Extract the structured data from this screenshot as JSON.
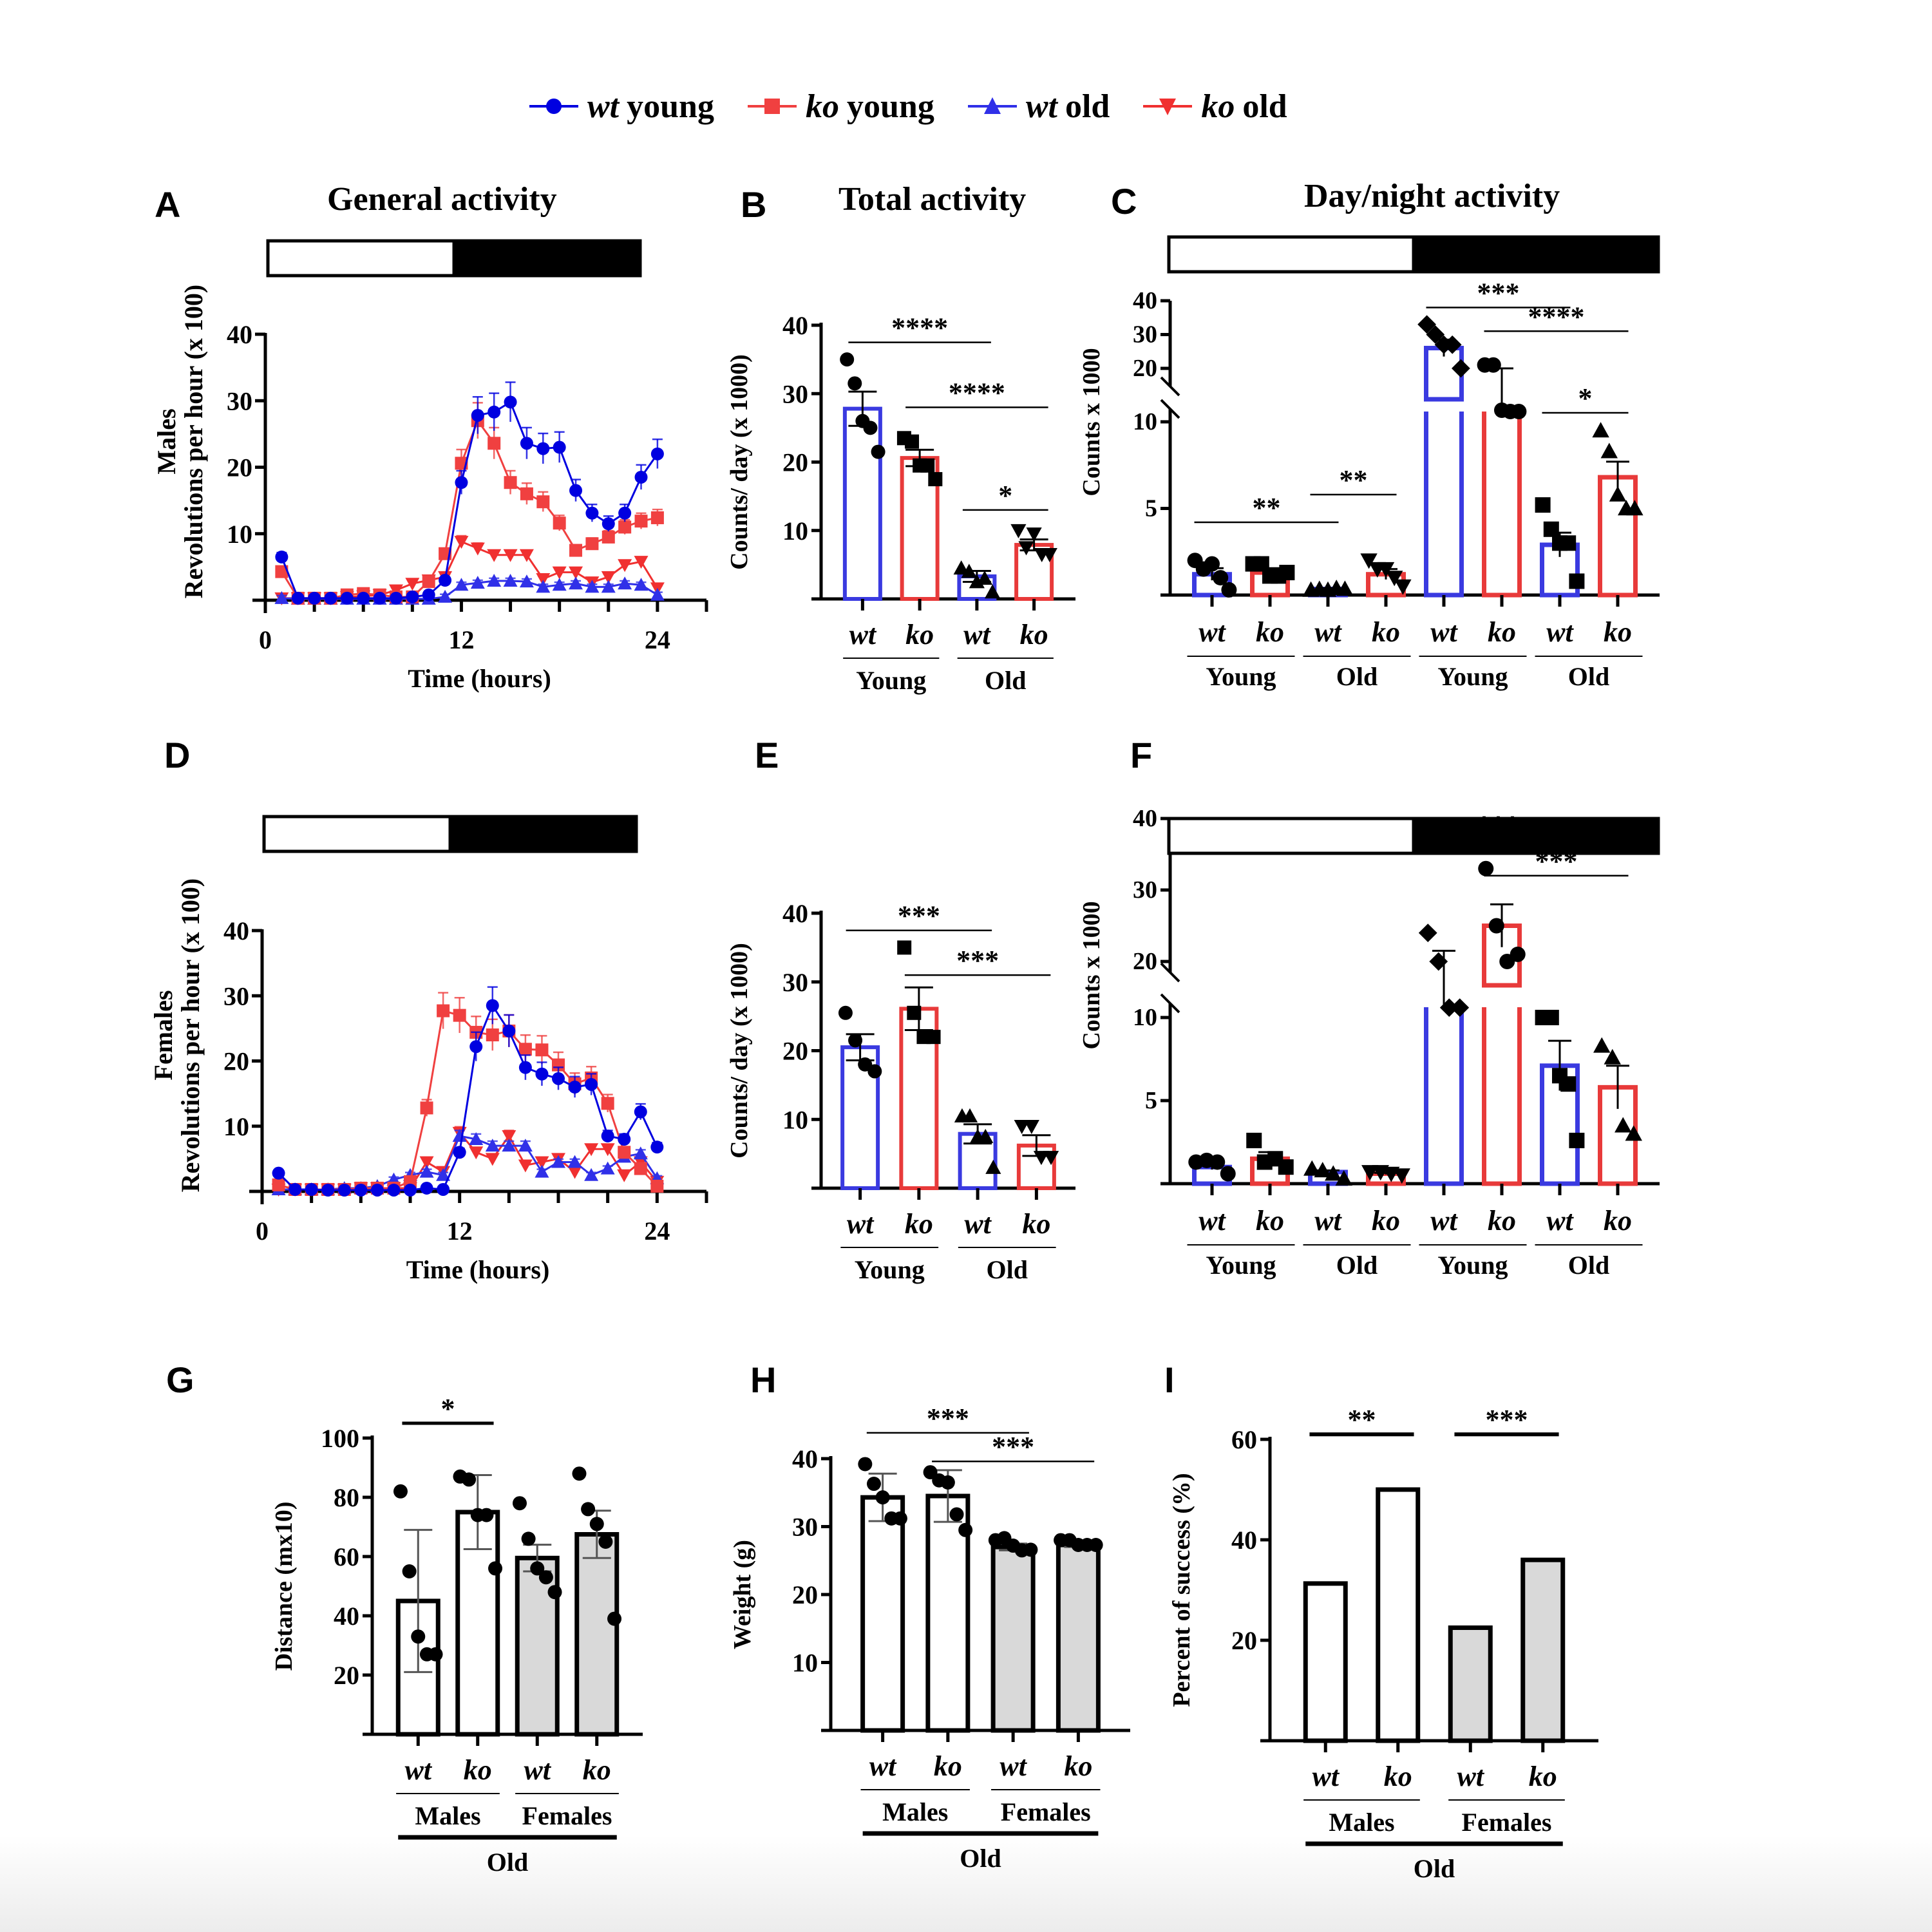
{
  "legend": [
    {
      "genotype": "wt",
      "label": "young",
      "color": "#0000e0",
      "marker": "circle"
    },
    {
      "genotype": "ko",
      "label": "young",
      "color": "#f04040",
      "marker": "square"
    },
    {
      "genotype": "wt",
      "label": "old",
      "color": "#3030e8",
      "marker": "triangle-up"
    },
    {
      "genotype": "ko",
      "label": "old",
      "color": "#f03030",
      "marker": "triangle-down"
    }
  ],
  "colors": {
    "wt": "#3a3ae0",
    "ko": "#e83a3a",
    "grey_fill": "#d9d9d9"
  },
  "chart_data": [
    {
      "id": "A",
      "type": "line",
      "title": "General activity",
      "ylabel": "Males\nRevolutions per hour (x 100)",
      "xlabel": "Time (hours)",
      "ylim": [
        0,
        40
      ],
      "yticks": [
        10,
        20,
        30,
        40
      ],
      "xlim": [
        0,
        27
      ],
      "xticks": [
        0,
        12,
        24
      ],
      "light_dark_bar": {
        "light": [
          0,
          12
        ],
        "dark": [
          12,
          24
        ]
      },
      "x": [
        1,
        2,
        3,
        4,
        5,
        6,
        7,
        8,
        9,
        10,
        11,
        12,
        13,
        14,
        15,
        16,
        17,
        18,
        19,
        20,
        21,
        22,
        23,
        24
      ],
      "series": [
        {
          "name": "wt young",
          "color": "#0000e0",
          "marker": "circle",
          "values": [
            6.5,
            0.3,
            0.3,
            0.3,
            0.3,
            0.3,
            0.3,
            0.3,
            0.5,
            0.8,
            3,
            17.7,
            27.8,
            28.3,
            29.8,
            23.6,
            22.8,
            23,
            16.5,
            13.1,
            11.5,
            13.1,
            18.5,
            22
          ]
        },
        {
          "name": "ko young",
          "color": "#f04040",
          "marker": "square",
          "values": [
            4.3,
            0.3,
            0.3,
            0.3,
            0.8,
            1,
            0.8,
            0.5,
            0.5,
            2.8,
            7,
            20.6,
            27,
            23.6,
            17.7,
            16,
            14.8,
            11.6,
            7.5,
            8.5,
            9.5,
            11,
            11.9,
            12.4
          ]
        },
        {
          "name": "wt old",
          "color": "#3030e8",
          "marker": "triangle-up",
          "values": [
            0.3,
            0.2,
            0.2,
            0.2,
            0.2,
            0.2,
            0.2,
            0.2,
            0.2,
            0.2,
            0.5,
            2.3,
            2.6,
            2.9,
            2.9,
            2.8,
            2,
            2.3,
            2.5,
            2,
            2,
            2.5,
            2.3,
            0.8
          ]
        },
        {
          "name": "ko old",
          "color": "#f03030",
          "marker": "triangle-down",
          "values": [
            0.3,
            0.3,
            0.3,
            0.3,
            0.5,
            0.6,
            0.8,
            1.5,
            2.5,
            3,
            3.5,
            8.8,
            7.8,
            6.8,
            6.8,
            6.8,
            3.2,
            4.2,
            4.2,
            2.7,
            3.5,
            5.3,
            5.8,
            1.8
          ]
        }
      ]
    },
    {
      "id": "B",
      "type": "bar",
      "title": "Total activity",
      "ylabel": "Counts/ day (x 1000)",
      "ylim": [
        0,
        40
      ],
      "yticks": [
        10,
        20,
        30,
        40
      ],
      "categories": [
        "wt",
        "ko",
        "wt",
        "ko"
      ],
      "groups": [
        {
          "label": "Young",
          "span": [
            0,
            1
          ]
        },
        {
          "label": "Old",
          "span": [
            2,
            3
          ]
        }
      ],
      "bar_colors": [
        "wt",
        "ko",
        "wt",
        "ko"
      ],
      "values": [
        27.8,
        20.6,
        3.3,
        7.9
      ],
      "sem": [
        2.5,
        1.2,
        0.8,
        0.8
      ],
      "points": [
        [
          35,
          31.5,
          26,
          25,
          21.5
        ],
        [
          23.5,
          23,
          19.5,
          19.5,
          17.5
        ],
        [
          4.5,
          4,
          2.5,
          3,
          1
        ],
        [
          10,
          7.5,
          9.5,
          6.5,
          6.5
        ]
      ],
      "point_markers": [
        "circle",
        "square",
        "triangle-up",
        "triangle-down"
      ],
      "significance": [
        {
          "from": 0,
          "to": 2,
          "label": "****",
          "y": 37.5
        },
        {
          "from": 1,
          "to": 3,
          "label": "****",
          "y": 28
        },
        {
          "from": 2,
          "to": 3,
          "label": "*",
          "y": 13
        }
      ]
    },
    {
      "id": "C",
      "type": "bar",
      "title": "Day/night activity",
      "ylabel": "Counts x 1000",
      "axis_break": true,
      "yticks": [
        5,
        10,
        20,
        30,
        40
      ],
      "light_dark_bar": {
        "light_bars": [
          0,
          1,
          2,
          3
        ],
        "dark_bars": [
          4,
          5,
          6,
          7
        ]
      },
      "categories": [
        "wt",
        "ko",
        "wt",
        "ko",
        "wt",
        "ko",
        "wt",
        "ko"
      ],
      "groups": [
        {
          "label": "Young",
          "span": [
            0,
            1
          ]
        },
        {
          "label": "Old",
          "span": [
            2,
            3
          ]
        },
        {
          "label": "Young",
          "span": [
            4,
            5
          ]
        },
        {
          "label": "Old",
          "span": [
            6,
            7
          ]
        }
      ],
      "bar_colors": [
        "wt",
        "ko",
        "wt",
        "ko",
        "wt",
        "ko",
        "wt",
        "ko"
      ],
      "values": [
        1.2,
        1.3,
        0.35,
        1.2,
        26,
        19,
        2.9,
        6.8
      ],
      "sem": [
        0.35,
        0.25,
        0.05,
        0.3,
        2.5,
        1,
        0.7,
        0.9
      ],
      "points": [
        [
          2,
          1.5,
          1.8,
          1,
          0.3
        ],
        [
          1.8,
          1.8,
          1.1,
          1.1,
          1.3
        ],
        [
          0.3,
          0.35,
          0.3,
          0.4,
          0.35
        ],
        [
          2,
          1.5,
          1.5,
          1,
          0.5
        ],
        [
          33,
          30,
          27,
          27,
          20
        ],
        [
          21,
          21,
          19,
          18,
          18
        ],
        [
          5.2,
          3.8,
          3,
          3,
          0.8
        ],
        [
          9.5,
          8.3,
          5.8,
          5,
          5
        ]
      ],
      "point_markers": [
        "circle",
        "square",
        "triangle-up",
        "triangle-down",
        "diamond",
        "circle",
        "square",
        "triangle-up"
      ],
      "significance": [
        {
          "from": 0,
          "to": 2,
          "label": "**",
          "y": 4.2
        },
        {
          "from": 2,
          "to": 3,
          "label": "**",
          "y": 5.8
        },
        {
          "from": 4,
          "to": 6,
          "label": "***",
          "y": 38
        },
        {
          "from": 5,
          "to": 7,
          "label": "****",
          "y": 31
        },
        {
          "from": 6,
          "to": 7,
          "label": "*",
          "y": 17
        }
      ]
    },
    {
      "id": "D",
      "type": "line",
      "title": "",
      "ylabel": "Females\nRevolutions per hour (x 100)",
      "xlabel": "Time (hours)",
      "ylim": [
        0,
        40
      ],
      "yticks": [
        10,
        20,
        30,
        40
      ],
      "xlim": [
        0,
        27
      ],
      "xticks": [
        0,
        12,
        24
      ],
      "light_dark_bar": {
        "light": [
          0,
          12
        ],
        "dark": [
          12,
          24
        ]
      },
      "x": [
        1,
        2,
        3,
        4,
        5,
        6,
        7,
        8,
        9,
        10,
        11,
        12,
        13,
        14,
        15,
        16,
        17,
        18,
        19,
        20,
        21,
        22,
        23,
        24
      ],
      "series": [
        {
          "name": "wt young",
          "color": "#0000e0",
          "marker": "circle",
          "values": [
            2.8,
            0.3,
            0.3,
            0.2,
            0.2,
            0.2,
            0.2,
            0.2,
            0.2,
            0.5,
            0.3,
            6,
            22.2,
            28.5,
            24.6,
            19,
            18,
            17.3,
            16,
            16.4,
            8.5,
            8,
            12.2,
            6.8
          ]
        },
        {
          "name": "ko young",
          "color": "#f04040",
          "marker": "square",
          "values": [
            1,
            0.3,
            0.3,
            0.3,
            0.3,
            0.5,
            0.5,
            0.5,
            1.5,
            12.8,
            27.7,
            27,
            24.4,
            24,
            24.6,
            21.8,
            21.7,
            19.4,
            16.5,
            17.4,
            13.5,
            6,
            3.5,
            0.8
          ]
        },
        {
          "name": "wt old",
          "color": "#3030e8",
          "marker": "triangle-up",
          "values": [
            0.3,
            0.3,
            0.3,
            0.3,
            0.5,
            0.5,
            0.8,
            1.8,
            2.5,
            3,
            2.5,
            8.5,
            8,
            7,
            7,
            7,
            3,
            4.5,
            4.5,
            2.5,
            3.5,
            5.3,
            5.8,
            2
          ]
        },
        {
          "name": "ko old",
          "color": "#f03030",
          "marker": "triangle-down",
          "values": [
            0.3,
            0.3,
            0.3,
            0.3,
            0.3,
            0.5,
            0.5,
            0.5,
            0.5,
            4.5,
            3,
            9,
            6,
            5,
            8.5,
            4,
            4.5,
            5,
            3,
            6.5,
            6.5,
            2.5,
            4.5,
            1.5
          ]
        }
      ]
    },
    {
      "id": "E",
      "type": "bar",
      "title": "",
      "ylabel": "Counts/ day (x 1000)",
      "ylim": [
        0,
        40
      ],
      "yticks": [
        10,
        20,
        30,
        40
      ],
      "categories": [
        "wt",
        "ko",
        "wt",
        "ko"
      ],
      "groups": [
        {
          "label": "Young",
          "span": [
            0,
            1
          ]
        },
        {
          "label": "Old",
          "span": [
            2,
            3
          ]
        }
      ],
      "bar_colors": [
        "wt",
        "ko",
        "wt",
        "ko"
      ],
      "values": [
        20.5,
        26.1,
        7.9,
        6.2
      ],
      "sem": [
        1.9,
        3.1,
        1.4,
        1.5
      ],
      "points": [
        [
          25.5,
          21.5,
          18,
          17
        ],
        [
          35,
          25.5,
          22,
          22
        ],
        [
          10.5,
          10.5,
          7.5,
          7.5,
          3
        ],
        [
          9,
          9,
          4.5,
          4.5
        ]
      ],
      "point_markers": [
        "circle",
        "square",
        "triangle-up",
        "triangle-down"
      ],
      "significance": [
        {
          "from": 0,
          "to": 2,
          "label": "***",
          "y": 37.5
        },
        {
          "from": 1,
          "to": 3,
          "label": "***",
          "y": 31
        }
      ]
    },
    {
      "id": "F",
      "type": "bar",
      "title": "",
      "ylabel": "Counts x 1000",
      "axis_break": true,
      "yticks": [
        5,
        10,
        20,
        30,
        40
      ],
      "light_dark_bar": {
        "light_bars": [
          0,
          1,
          2,
          3
        ],
        "dark_bars": [
          4,
          5,
          6,
          7
        ]
      },
      "categories": [
        "wt",
        "ko",
        "wt",
        "ko",
        "wt",
        "ko",
        "wt",
        "ko"
      ],
      "groups": [
        {
          "label": "Young",
          "span": [
            0,
            1
          ]
        },
        {
          "label": "Old",
          "span": [
            2,
            3
          ]
        },
        {
          "label": "Young",
          "span": [
            4,
            5
          ]
        },
        {
          "label": "Old",
          "span": [
            6,
            7
          ]
        }
      ],
      "bar_colors": [
        "wt",
        "ko",
        "wt",
        "ko",
        "wt",
        "ko",
        "wt",
        "ko"
      ],
      "values": [
        1,
        1.5,
        0.7,
        0.6,
        19.5,
        25,
        7.1,
        5.8
      ],
      "sem": [
        0.15,
        0.4,
        0.1,
        0.05,
        2,
        3,
        1.5,
        1.3
      ],
      "points": [
        [
          1.3,
          1.4,
          1.3,
          0.6
        ],
        [
          2.6,
          1.3,
          1.5,
          1
        ],
        [
          0.9,
          0.8,
          0.6,
          0.3
        ],
        [
          0.7,
          0.7,
          0.6,
          0.5
        ],
        [
          24,
          20,
          17,
          17
        ],
        [
          33,
          25,
          20,
          21
        ],
        [
          10,
          10,
          6.5,
          6,
          2.6
        ],
        [
          8.3,
          7.6,
          3.5,
          3
        ]
      ],
      "point_markers": [
        "circle",
        "square",
        "triangle-up",
        "triangle-down",
        "diamond",
        "circle",
        "square",
        "triangle-up"
      ],
      "significance": [
        {
          "from": 4,
          "to": 6,
          "label": "***",
          "y": 37
        },
        {
          "from": 5,
          "to": 7,
          "label": "***",
          "y": 32
        }
      ]
    },
    {
      "id": "G",
      "type": "bar",
      "title": "",
      "ylabel": "Distance (mx10)",
      "ylim": [
        0,
        100
      ],
      "yticks": [
        20,
        40,
        60,
        80,
        100
      ],
      "categories": [
        "wt",
        "ko",
        "wt",
        "ko"
      ],
      "groups": [
        {
          "label": "Males",
          "span": [
            0,
            1
          ]
        },
        {
          "label": "Females",
          "span": [
            2,
            3
          ]
        }
      ],
      "super_group": "Old",
      "fills": [
        "white",
        "white",
        "grey",
        "grey"
      ],
      "values": [
        45,
        75,
        59.5,
        67.5
      ],
      "err": [
        24,
        12.5,
        4.5,
        8
      ],
      "points": [
        [
          82,
          55,
          33,
          27,
          27
        ],
        [
          87,
          86,
          74,
          74,
          56
        ],
        [
          78,
          66,
          56,
          53,
          48
        ],
        [
          88,
          76,
          71,
          65,
          39
        ]
      ],
      "significance": [
        {
          "from": 0,
          "to": 1,
          "label": "*",
          "y": 105
        }
      ]
    },
    {
      "id": "H",
      "type": "bar",
      "title": "",
      "ylabel": "Weight (g)",
      "ylim": [
        0,
        40
      ],
      "yticks": [
        10,
        20,
        30,
        40
      ],
      "categories": [
        "wt",
        "ko",
        "wt",
        "ko"
      ],
      "groups": [
        {
          "label": "Males",
          "span": [
            0,
            1
          ]
        },
        {
          "label": "Females",
          "span": [
            2,
            3
          ]
        }
      ],
      "super_group": "Old",
      "fills": [
        "white",
        "white",
        "grey",
        "grey"
      ],
      "values": [
        34.3,
        34.5,
        27,
        27.3
      ],
      "err": [
        3.5,
        3.8,
        0.5,
        0.3
      ],
      "points": [
        [
          39.2,
          36.3,
          34.3,
          31.2,
          31.2
        ],
        [
          38,
          36.8,
          36.5,
          31.8,
          29.5
        ],
        [
          28,
          28.3,
          27.2,
          26.5,
          26.6
        ],
        [
          28,
          28,
          27.3,
          27.3,
          27.3
        ]
      ],
      "significance": [
        {
          "from": 0,
          "to": 2,
          "label": "***",
          "y": 43.8
        },
        {
          "from": 1,
          "to": 3,
          "label": "***",
          "y": 39.6
        }
      ]
    },
    {
      "id": "I",
      "type": "bar",
      "title": "",
      "ylabel": "Percent of success (%)",
      "ylim": [
        0,
        60
      ],
      "yticks": [
        20,
        40,
        60
      ],
      "categories": [
        "wt",
        "ko",
        "wt",
        "ko"
      ],
      "groups": [
        {
          "label": "Males",
          "span": [
            0,
            1
          ]
        },
        {
          "label": "Females",
          "span": [
            2,
            3
          ]
        }
      ],
      "super_group": "Old",
      "fills": [
        "white",
        "white",
        "grey",
        "grey"
      ],
      "values": [
        31.3,
        50,
        22.5,
        36
      ],
      "significance": [
        {
          "from": 0,
          "to": 1,
          "label": "**",
          "y": 61
        },
        {
          "from": 2,
          "to": 3,
          "label": "***",
          "y": 61
        }
      ]
    }
  ]
}
